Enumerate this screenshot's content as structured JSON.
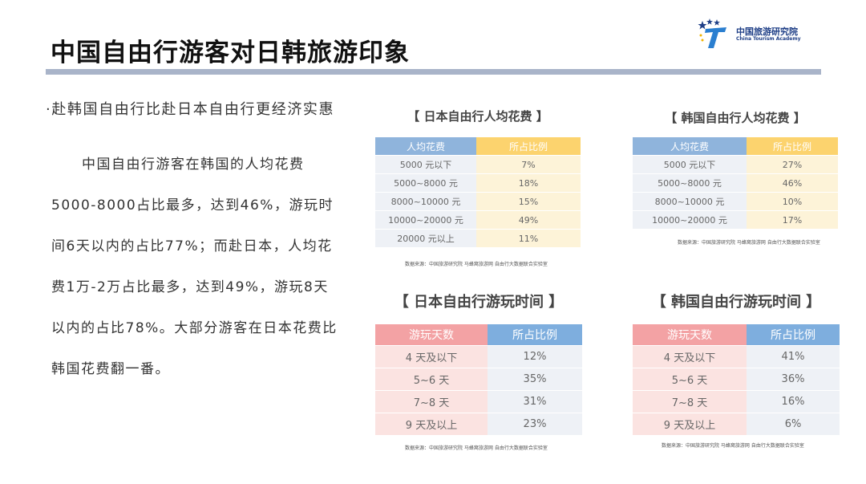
{
  "header": {
    "title": "中国自由行游客对日韩旅游印象",
    "logo_cn": "中国旅游研究院",
    "logo_en": "China Tourism Academy"
  },
  "left": {
    "bullet": "·赴韩国自由行比赴日本自由行更经济实惠",
    "paragraph": "中国自由行游客在韩国的人均花费5000-8000占比最多，达到46%，游玩时间6天以内的占比77%；而赴日本，人均花费1万-2万占比最多，达到49%，游玩8天以内的占比78%。大部分游客在日本花费比韩国花费翻一番。"
  },
  "tables": {
    "japan_spend": {
      "title": "【 日本自由行人均花费 】",
      "col1": "人均花费",
      "col2": "所占比例",
      "rows": [
        [
          "5000 元以下",
          "7%"
        ],
        [
          "5000~8000 元",
          "18%"
        ],
        [
          "8000~10000 元",
          "15%"
        ],
        [
          "10000~20000 元",
          "49%"
        ],
        [
          "20000 元以上",
          "11%"
        ]
      ],
      "source": "数据来源：中国旅游研究院 马蜂窝旅游网 自由行大数据联合实验室"
    },
    "korea_spend": {
      "title": "【 韩国自由行人均花费 】",
      "col1": "人均花费",
      "col2": "所占比例",
      "rows": [
        [
          "5000 元以下",
          "27%"
        ],
        [
          "5000~8000 元",
          "46%"
        ],
        [
          "8000~10000 元",
          "10%"
        ],
        [
          "10000~20000 元",
          "17%"
        ]
      ],
      "source": "数据来源：中国旅游研究院 马蜂窝旅游网 自由行大数据联合实验室"
    },
    "japan_days": {
      "title": "【 日本自由行游玩时间 】",
      "col1": "游玩天数",
      "col2": "所占比例",
      "rows": [
        [
          "4 天及以下",
          "12%"
        ],
        [
          "5~6 天",
          "35%"
        ],
        [
          "7~8 天",
          "31%"
        ],
        [
          "9 天及以上",
          "23%"
        ]
      ],
      "source": "数据来源：中国旅游研究院 马蜂窝旅游网 自由行大数据联合实验室"
    },
    "korea_days": {
      "title": "【 韩国自由行游玩时间 】",
      "col1": "游玩天数",
      "col2": "所占比例",
      "rows": [
        [
          "4 天及以下",
          "41%"
        ],
        [
          "5~6 天",
          "36%"
        ],
        [
          "7~8 天",
          "16%"
        ],
        [
          "9 天及以上",
          "6%"
        ]
      ],
      "source": "数据来源：中国旅游研究院 马蜂窝旅游网 自由行大数据联合实验室"
    }
  }
}
